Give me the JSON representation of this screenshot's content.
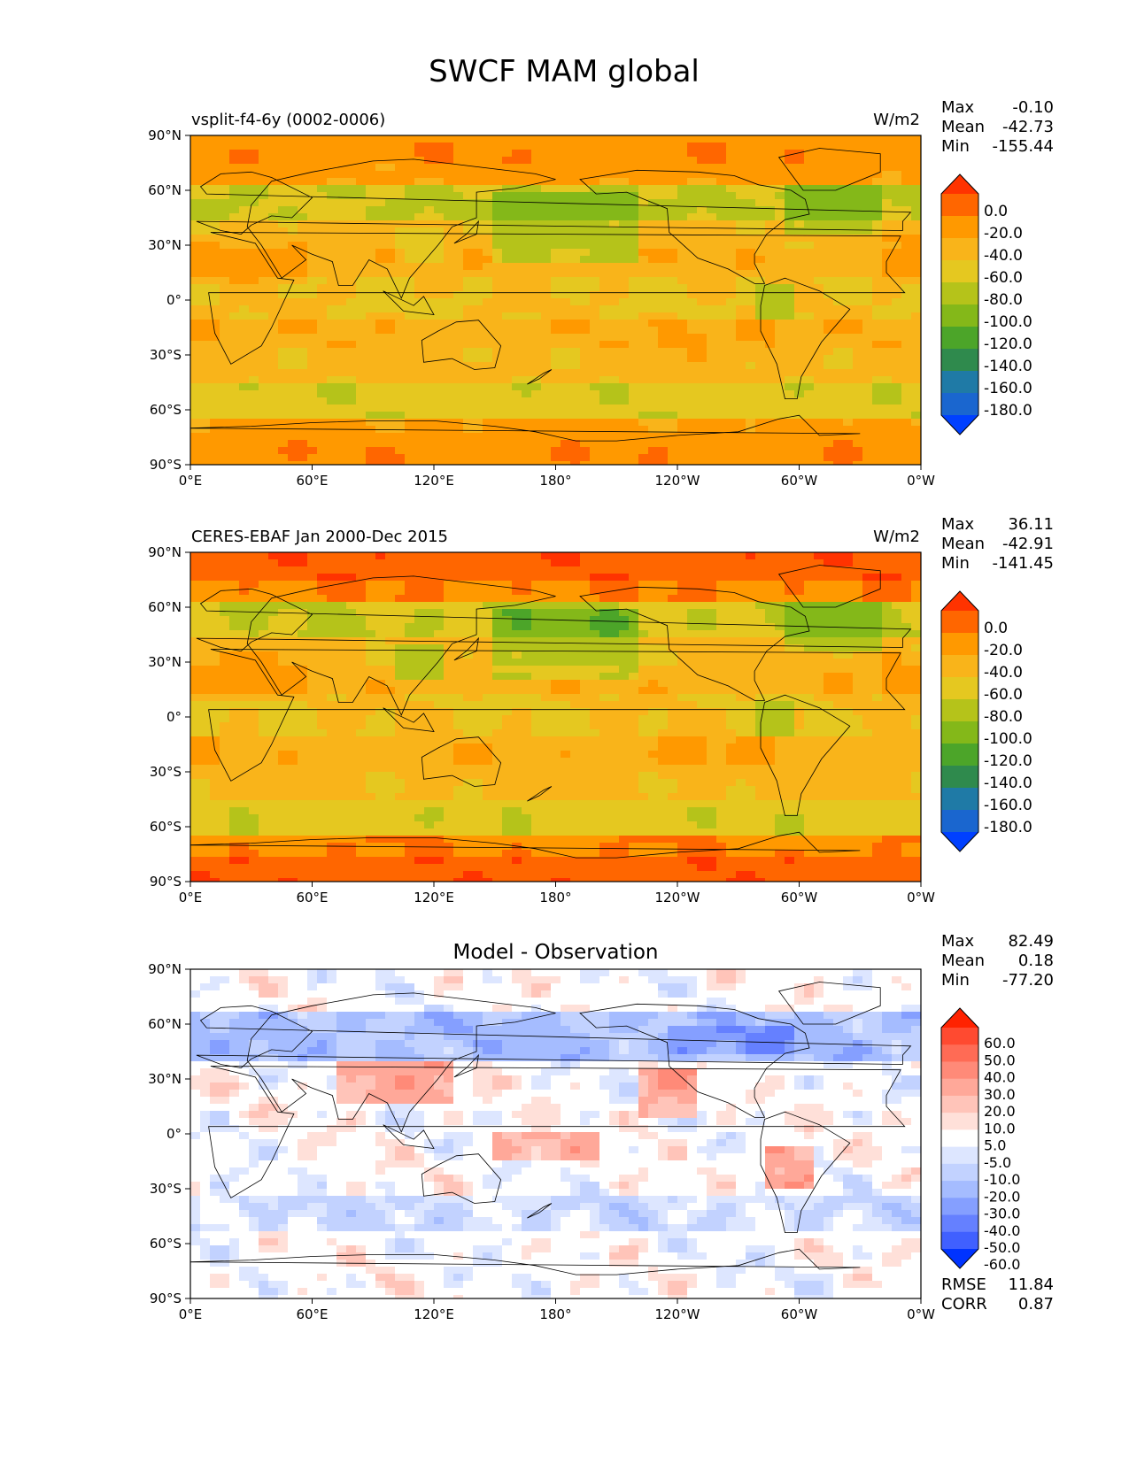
{
  "figure": {
    "title": "SWCF MAM global"
  },
  "panels": [
    {
      "title_left": "vsplit-f4-6y (0002-0006)",
      "title_center": "",
      "units": "W/m2",
      "stats": [
        {
          "label": "Max",
          "value": "-0.10"
        },
        {
          "label": "Mean",
          "value": "-42.73"
        },
        {
          "label": "Min",
          "value": "-155.44"
        }
      ],
      "colorbar": {
        "labels": [
          "0.0",
          "-20.0",
          "-40.0",
          "-60.0",
          "-80.0",
          "-100.0",
          "-120.0",
          "-140.0",
          "-160.0",
          "-180.0"
        ],
        "colors": [
          "#ff3300",
          "#ff6600",
          "#ff9900",
          "#f9b41a",
          "#e5c820",
          "#b5c31a",
          "#84b819",
          "#4ca529",
          "#2f8a4d",
          "#1f7aa6",
          "#1a66cf",
          "#0040ff"
        ]
      },
      "footer": []
    },
    {
      "title_left": "CERES-EBAF Jan 2000-Dec 2015",
      "title_center": "",
      "units": "W/m2",
      "stats": [
        {
          "label": "Max",
          "value": "36.11"
        },
        {
          "label": "Mean",
          "value": "-42.91"
        },
        {
          "label": "Min",
          "value": "-141.45"
        }
      ],
      "colorbar": {
        "labels": [
          "0.0",
          "-20.0",
          "-40.0",
          "-60.0",
          "-80.0",
          "-100.0",
          "-120.0",
          "-140.0",
          "-160.0",
          "-180.0"
        ],
        "colors": [
          "#ff3300",
          "#ff6600",
          "#ff9900",
          "#f9b41a",
          "#e5c820",
          "#b5c31a",
          "#84b819",
          "#4ca529",
          "#2f8a4d",
          "#1f7aa6",
          "#1a66cf",
          "#0040ff"
        ]
      },
      "footer": []
    },
    {
      "title_left": "",
      "title_center": "Model - Observation",
      "units": "",
      "stats": [
        {
          "label": "Max",
          "value": "82.49"
        },
        {
          "label": "Mean",
          "value": "0.18"
        },
        {
          "label": "Min",
          "value": "-77.20"
        }
      ],
      "colorbar": {
        "labels": [
          "60.0",
          "50.0",
          "40.0",
          "30.0",
          "20.0",
          "10.0",
          "5.0",
          "-5.0",
          "-10.0",
          "-20.0",
          "-30.0",
          "-40.0",
          "-50.0",
          "-60.0"
        ],
        "colors": [
          "#ff2200",
          "#ff4a30",
          "#ff6b55",
          "#ff8a78",
          "#ffa899",
          "#ffc4b9",
          "#ffe0d9",
          "#ffffff",
          "#dde6ff",
          "#c2d2ff",
          "#a5bcff",
          "#859fff",
          "#6580ff",
          "#4060ff",
          "#0033ff"
        ]
      },
      "footer": [
        {
          "label": "RMSE",
          "value": "11.84"
        },
        {
          "label": "CORR",
          "value": "0.87"
        }
      ]
    }
  ],
  "axes": {
    "xticks": [
      "0°E",
      "60°E",
      "120°E",
      "180°",
      "120°W",
      "60°W",
      "0°W"
    ],
    "yticks": [
      "90°N",
      "60°N",
      "30°N",
      "0°",
      "30°S",
      "60°S",
      "90°S"
    ]
  },
  "chart_data": [
    {
      "type": "heatmap",
      "title": "vsplit-f4-6y (0002-0006)",
      "units": "W/m2",
      "x_ticks": [
        "0°E",
        "60°E",
        "120°E",
        "180°",
        "120°W",
        "60°W",
        "0°W"
      ],
      "y_ticks": [
        "90°N",
        "60°N",
        "30°N",
        "0°",
        "30°S",
        "60°S",
        "90°S"
      ],
      "xlim": [
        0,
        360
      ],
      "ylim": [
        -90,
        90
      ],
      "stats": {
        "max": -0.1,
        "mean": -42.73,
        "min": -155.44
      },
      "levels": [
        0,
        -20,
        -40,
        -60,
        -80,
        -100,
        -120,
        -140,
        -160,
        -180
      ]
    },
    {
      "type": "heatmap",
      "title": "CERES-EBAF Jan 2000-Dec 2015",
      "units": "W/m2",
      "x_ticks": [
        "0°E",
        "60°E",
        "120°E",
        "180°",
        "120°W",
        "60°W",
        "0°W"
      ],
      "y_ticks": [
        "90°N",
        "60°N",
        "30°N",
        "0°",
        "30°S",
        "60°S",
        "90°S"
      ],
      "xlim": [
        0,
        360
      ],
      "ylim": [
        -90,
        90
      ],
      "stats": {
        "max": 36.11,
        "mean": -42.91,
        "min": -141.45
      },
      "levels": [
        0,
        -20,
        -40,
        -60,
        -80,
        -100,
        -120,
        -140,
        -160,
        -180
      ]
    },
    {
      "type": "heatmap",
      "title": "Model - Observation",
      "x_ticks": [
        "0°E",
        "60°E",
        "120°E",
        "180°",
        "120°W",
        "60°W",
        "0°W"
      ],
      "y_ticks": [
        "90°N",
        "60°N",
        "30°N",
        "0°",
        "30°S",
        "60°S",
        "90°S"
      ],
      "xlim": [
        0,
        360
      ],
      "ylim": [
        -90,
        90
      ],
      "stats": {
        "max": 82.49,
        "mean": 0.18,
        "min": -77.2,
        "rmse": 11.84,
        "corr": 0.87
      },
      "levels": [
        60,
        50,
        40,
        30,
        20,
        10,
        5,
        -5,
        -10,
        -20,
        -30,
        -40,
        -50,
        -60
      ]
    }
  ]
}
